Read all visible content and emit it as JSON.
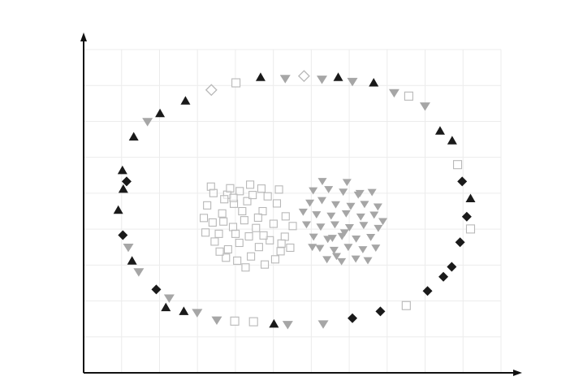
{
  "chart_data": {
    "type": "scatter",
    "title": "",
    "xlabel": "",
    "ylabel": "",
    "xlim": [
      0,
      100
    ],
    "ylim": [
      0,
      100
    ],
    "grid": true,
    "axis_ticks": false,
    "colors": {
      "black": "#1a1a1a",
      "gray": "#a6a6a6",
      "light": "#b8b8b8",
      "grid": "#ececec",
      "axis": "#111111"
    },
    "series": [
      {
        "marker": "triangle-up",
        "color": "#1a1a1a",
        "points": [
          [
            42.4,
            91.4
          ],
          [
            61.0,
            91.4
          ],
          [
            69.5,
            89.7
          ],
          [
            24.4,
            84.1
          ],
          [
            18.3,
            80.2
          ],
          [
            12.0,
            73.0
          ],
          [
            85.4,
            74.8
          ],
          [
            88.3,
            71.8
          ],
          [
            9.3,
            62.6
          ],
          [
            9.5,
            56.8
          ],
          [
            8.3,
            50.3
          ],
          [
            92.7,
            53.9
          ],
          [
            11.6,
            34.6
          ],
          [
            19.7,
            20.2
          ],
          [
            24.0,
            19.0
          ],
          [
            45.6,
            15.1
          ]
        ]
      },
      {
        "marker": "triangle-down",
        "color": "#a6a6a6",
        "points": [
          [
            48.3,
            91.0
          ],
          [
            57.1,
            90.8
          ],
          [
            64.4,
            90.1
          ],
          [
            74.4,
            86.6
          ],
          [
            81.8,
            82.5
          ],
          [
            15.3,
            77.7
          ],
          [
            10.7,
            38.8
          ],
          [
            13.2,
            31.2
          ],
          [
            20.5,
            23.1
          ],
          [
            27.2,
            18.6
          ],
          [
            31.9,
            16.3
          ],
          [
            48.9,
            14.9
          ],
          [
            57.4,
            15.1
          ]
        ]
      },
      {
        "marker": "diamond",
        "color": "#1a1a1a",
        "points": [
          [
            10.3,
            59.2
          ],
          [
            9.4,
            42.6
          ],
          [
            90.7,
            59.2
          ],
          [
            91.8,
            48.3
          ],
          [
            90.2,
            40.4
          ],
          [
            88.2,
            32.8
          ],
          [
            86.2,
            29.7
          ],
          [
            82.4,
            25.3
          ],
          [
            17.4,
            25.8
          ],
          [
            71.1,
            19.0
          ],
          [
            64.4,
            16.9
          ]
        ]
      },
      {
        "marker": "diamond-open",
        "color": "#b8b8b8",
        "points": [
          [
            30.6,
            87.5
          ],
          [
            52.8,
            91.8
          ]
        ]
      },
      {
        "marker": "square-open",
        "color": "#b8b8b8",
        "points": [
          [
            36.5,
            89.7
          ],
          [
            77.9,
            85.6
          ],
          [
            89.6,
            64.4
          ],
          [
            92.7,
            44.5
          ],
          [
            77.3,
            20.8
          ],
          [
            36.2,
            16.0
          ],
          [
            40.7,
            15.8
          ]
        ]
      },
      {
        "marker": "square-open",
        "color": "#b8b8b8",
        "cluster": true,
        "points": [
          [
            30.5,
            57.6
          ],
          [
            34.4,
            55.1
          ],
          [
            39.2,
            53.1
          ],
          [
            36.0,
            52.3
          ],
          [
            42.9,
            50.0
          ],
          [
            33.2,
            49.3
          ],
          [
            38.5,
            47.2
          ],
          [
            30.9,
            46.5
          ],
          [
            41.3,
            44.8
          ],
          [
            35.8,
            45.1
          ],
          [
            32.4,
            43.0
          ],
          [
            39.6,
            42.2
          ],
          [
            44.6,
            41.0
          ],
          [
            37.3,
            40.2
          ],
          [
            42.0,
            38.9
          ],
          [
            34.6,
            38.2
          ],
          [
            47.2,
            37.6
          ],
          [
            40.1,
            36.0
          ],
          [
            36.8,
            34.7
          ],
          [
            43.4,
            33.5
          ],
          [
            38.8,
            32.6
          ],
          [
            31.4,
            40.6
          ],
          [
            45.5,
            46.1
          ],
          [
            33.7,
            53.7
          ],
          [
            46.3,
            52.4
          ],
          [
            40.5,
            55.0
          ],
          [
            37.4,
            56.2
          ],
          [
            48.4,
            48.4
          ],
          [
            29.6,
            51.8
          ],
          [
            44.1,
            54.6
          ],
          [
            31.1,
            55.6
          ],
          [
            35.1,
            57.1
          ],
          [
            42.6,
            57.0
          ],
          [
            29.2,
            43.4
          ],
          [
            45.9,
            35.1
          ],
          [
            34.1,
            35.6
          ],
          [
            48.2,
            42.1
          ],
          [
            38.0,
            50.0
          ],
          [
            41.8,
            48.0
          ],
          [
            36.4,
            43.0
          ],
          [
            32.6,
            37.5
          ],
          [
            49.5,
            38.7
          ],
          [
            50.1,
            45.4
          ],
          [
            28.8,
            47.9
          ],
          [
            39.9,
            58.2
          ],
          [
            46.8,
            56.7
          ],
          [
            43.1,
            42.5
          ],
          [
            33.5,
            46.8
          ],
          [
            47.4,
            40.0
          ],
          [
            35.9,
            54.1
          ]
        ]
      },
      {
        "marker": "triangle-down",
        "color": "#a6a6a6",
        "cluster": true,
        "points": [
          [
            55.0,
            56.4
          ],
          [
            58.7,
            56.8
          ],
          [
            62.2,
            56.0
          ],
          [
            65.8,
            55.1
          ],
          [
            54.2,
            52.6
          ],
          [
            57.1,
            53.4
          ],
          [
            60.4,
            52.1
          ],
          [
            64.0,
            51.6
          ],
          [
            67.3,
            52.2
          ],
          [
            70.5,
            51.4
          ],
          [
            55.8,
            49.0
          ],
          [
            59.3,
            48.6
          ],
          [
            62.9,
            49.3
          ],
          [
            66.4,
            48.3
          ],
          [
            69.6,
            48.9
          ],
          [
            53.4,
            45.9
          ],
          [
            56.8,
            45.2
          ],
          [
            60.2,
            45.9
          ],
          [
            63.7,
            45.0
          ],
          [
            67.1,
            45.7
          ],
          [
            70.6,
            44.8
          ],
          [
            55.1,
            42.1
          ],
          [
            58.5,
            41.4
          ],
          [
            61.9,
            42.3
          ],
          [
            65.3,
            41.5
          ],
          [
            68.8,
            42.0
          ],
          [
            56.6,
            38.6
          ],
          [
            60.0,
            38.0
          ],
          [
            63.4,
            38.9
          ],
          [
            66.9,
            38.2
          ],
          [
            70.0,
            38.7
          ],
          [
            58.3,
            35.1
          ],
          [
            61.8,
            34.5
          ],
          [
            65.2,
            35.3
          ],
          [
            68.1,
            34.8
          ],
          [
            57.2,
            59.3
          ],
          [
            63.1,
            59.0
          ],
          [
            60.6,
            36.1
          ],
          [
            52.6,
            49.8
          ],
          [
            71.7,
            46.9
          ],
          [
            59.6,
            41.7
          ],
          [
            66.2,
            55.6
          ],
          [
            54.8,
            38.9
          ],
          [
            69.1,
            55.9
          ],
          [
            62.5,
            43.4
          ]
        ]
      }
    ]
  }
}
